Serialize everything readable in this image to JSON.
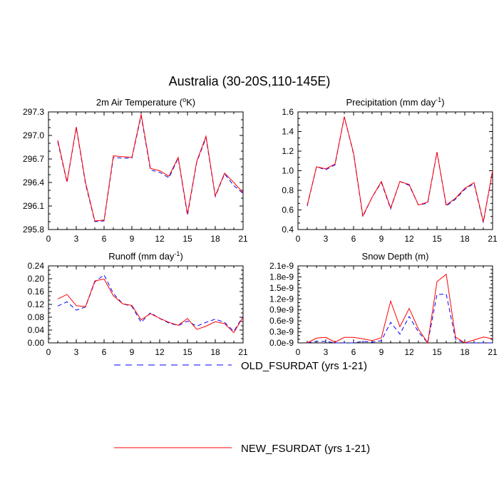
{
  "figure": {
    "title": "Australia (30-20S,110-145E)"
  },
  "legend": {
    "entries": [
      {
        "label": "OLD_FSURDAT (yrs 1-21)",
        "color": "#0000ff",
        "dash": true
      },
      {
        "label": "NEW_FSURDAT (yrs 1-21)",
        "color": "#ff0000",
        "dash": false
      }
    ]
  },
  "colors": {
    "old": "#0000ff",
    "new": "#ff0000"
  },
  "chart_data": [
    {
      "type": "line",
      "title": "2m Air Temperature (",
      "title_sup": "o",
      "title_tail": "K)",
      "xlim": [
        0,
        21
      ],
      "ylim": [
        295.8,
        297.3
      ],
      "xticks": [
        0,
        3,
        6,
        9,
        12,
        15,
        18,
        21
      ],
      "yticks": [
        295.8,
        296.1,
        296.4,
        296.7,
        297.0,
        297.3
      ],
      "ytick_labels": [
        "295.8",
        "296.1",
        "296.4",
        "296.7",
        "297.0",
        "297.3"
      ],
      "x": [
        1,
        2,
        3,
        4,
        5,
        6,
        7,
        8,
        9,
        10,
        11,
        12,
        13,
        14,
        15,
        16,
        17,
        18,
        19,
        20,
        21
      ],
      "series": [
        {
          "name": "OLD_FSURDAT (yrs 1-21)",
          "values": [
            296.92,
            296.4,
            297.1,
            296.38,
            295.9,
            295.91,
            296.72,
            296.71,
            296.71,
            297.25,
            296.56,
            296.53,
            296.46,
            296.71,
            295.98,
            296.66,
            296.97,
            296.22,
            296.51,
            296.36,
            296.26
          ]
        },
        {
          "name": "NEW_FSURDAT (yrs 1-21)",
          "values": [
            296.94,
            296.41,
            297.11,
            296.4,
            295.91,
            295.92,
            296.74,
            296.73,
            296.72,
            297.27,
            296.58,
            296.55,
            296.48,
            296.72,
            296.0,
            296.67,
            296.99,
            296.23,
            296.52,
            296.4,
            296.27
          ]
        }
      ]
    },
    {
      "type": "line",
      "title": "Precipitation (mm day",
      "title_sup": "-1",
      "title_tail": ")",
      "xlim": [
        0,
        21
      ],
      "ylim": [
        0.4,
        1.6
      ],
      "xticks": [
        0,
        3,
        6,
        9,
        12,
        15,
        18,
        21
      ],
      "yticks": [
        0.4,
        0.6,
        0.8,
        1.0,
        1.2,
        1.4,
        1.6
      ],
      "ytick_labels": [
        "0.4",
        "0.6",
        "0.8",
        "1.0",
        "1.2",
        "1.4",
        "1.6"
      ],
      "x": [
        1,
        2,
        3,
        4,
        5,
        6,
        7,
        8,
        9,
        10,
        11,
        12,
        13,
        14,
        15,
        16,
        17,
        18,
        19,
        20,
        21
      ],
      "series": [
        {
          "name": "OLD_FSURDAT (yrs 1-21)",
          "values": [
            0.64,
            1.04,
            1.01,
            1.06,
            1.55,
            1.17,
            0.53,
            0.73,
            0.88,
            0.61,
            0.89,
            0.85,
            0.65,
            0.67,
            1.19,
            0.64,
            0.71,
            0.81,
            0.87,
            0.47,
            1.0
          ]
        },
        {
          "name": "NEW_FSURDAT (yrs 1-21)",
          "values": [
            0.65,
            1.04,
            1.02,
            1.07,
            1.55,
            1.18,
            0.54,
            0.73,
            0.89,
            0.62,
            0.89,
            0.86,
            0.65,
            0.68,
            1.19,
            0.65,
            0.72,
            0.82,
            0.88,
            0.48,
            1.0
          ]
        }
      ]
    },
    {
      "type": "line",
      "title": "Runoff (mm day",
      "title_sup": "-1",
      "title_tail": ")",
      "xlim": [
        0,
        21
      ],
      "ylim": [
        0.0,
        0.24
      ],
      "xticks": [
        0,
        3,
        6,
        9,
        12,
        15,
        18,
        21
      ],
      "yticks": [
        0.0,
        0.04,
        0.08,
        0.12,
        0.16,
        0.2,
        0.24
      ],
      "ytick_labels": [
        "0.00",
        "0.04",
        "0.08",
        "0.12",
        "0.16",
        "0.20",
        "0.24"
      ],
      "x": [
        1,
        2,
        3,
        4,
        5,
        6,
        7,
        8,
        9,
        10,
        11,
        12,
        13,
        14,
        15,
        16,
        17,
        18,
        19,
        20,
        21
      ],
      "series": [
        {
          "name": "OLD_FSURDAT (yrs 1-21)",
          "values": [
            0.115,
            0.128,
            0.102,
            0.112,
            0.19,
            0.212,
            0.154,
            0.122,
            0.114,
            0.064,
            0.094,
            0.076,
            0.062,
            0.054,
            0.068,
            0.052,
            0.064,
            0.074,
            0.064,
            0.036,
            0.083
          ]
        },
        {
          "name": "NEW_FSURDAT (yrs 1-21)",
          "values": [
            0.137,
            0.151,
            0.116,
            0.113,
            0.193,
            0.199,
            0.147,
            0.122,
            0.117,
            0.072,
            0.091,
            0.077,
            0.064,
            0.055,
            0.076,
            0.042,
            0.052,
            0.066,
            0.06,
            0.032,
            0.081
          ]
        }
      ]
    },
    {
      "type": "line",
      "title": "Snow Depth (m)",
      "title_sup": "",
      "title_tail": "",
      "xlim": [
        0,
        21
      ],
      "ylim": [
        0,
        2.1e-09
      ],
      "xticks": [
        0,
        3,
        6,
        9,
        12,
        15,
        18,
        21
      ],
      "yticks": [
        0,
        3e-10,
        6e-10,
        9e-10,
        1.2e-09,
        1.5e-09,
        1.8e-09,
        2.1e-09
      ],
      "ytick_labels": [
        "0.0e-9",
        "0.3e-9",
        "0.6e-9",
        "0.9e-9",
        "1.2e-9",
        "1.5e-9",
        "1.8e-9",
        "2.1e-9"
      ],
      "x": [
        1,
        2,
        3,
        4,
        5,
        6,
        7,
        8,
        9,
        10,
        11,
        12,
        13,
        14,
        15,
        16,
        17,
        18,
        19,
        20,
        21
      ],
      "series": [
        {
          "name": "OLD_FSURDAT (yrs 1-21)",
          "values": [
            0,
            4e-11,
            4e-11,
            0,
            0,
            0,
            4e-11,
            2e-11,
            6e-11,
            5.6e-10,
            2.4e-10,
            7.2e-10,
            3e-10,
            0,
            1.32e-09,
            1.33e-09,
            1e-10,
            0,
            0,
            0,
            0
          ]
        },
        {
          "name": "NEW_FSURDAT (yrs 1-21)",
          "values": [
            0,
            1.3e-10,
            1.5e-10,
            2e-11,
            1.5e-10,
            1.5e-10,
            1.1e-10,
            6e-11,
            1.4e-10,
            1.14e-09,
            4.4e-10,
            9.4e-10,
            3.8e-10,
            0,
            1.67e-09,
            1.87e-09,
            1.6e-10,
            0,
            8e-11,
            1.6e-10,
            1.1e-10
          ]
        }
      ]
    }
  ]
}
